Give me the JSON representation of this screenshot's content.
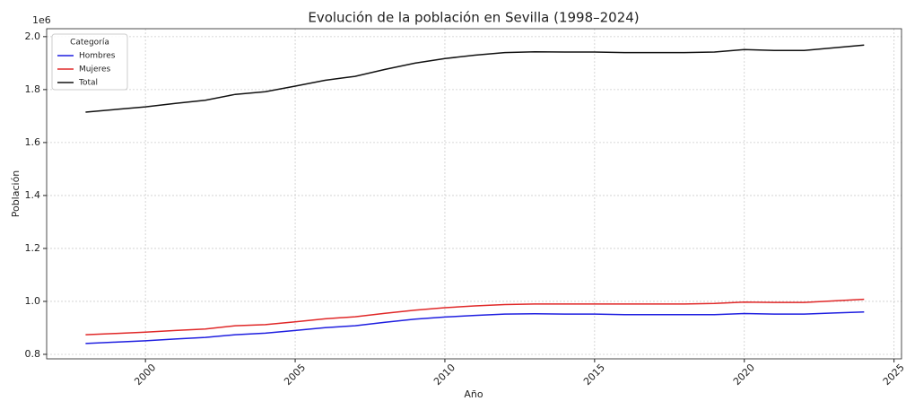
{
  "chart_data": {
    "type": "line",
    "title": "Evolución de la población en Sevilla (1998–2024)",
    "xlabel": "Año",
    "ylabel": "Población",
    "y_offset_label": "1e6",
    "x": [
      1998,
      1999,
      2000,
      2001,
      2002,
      2003,
      2004,
      2005,
      2006,
      2007,
      2008,
      2009,
      2010,
      2011,
      2012,
      2013,
      2014,
      2015,
      2016,
      2017,
      2018,
      2019,
      2020,
      2021,
      2022,
      2023,
      2024
    ],
    "series": [
      {
        "name": "Hombres",
        "color": "#1f1fe0",
        "values": [
          841000,
          846000,
          851000,
          858000,
          864000,
          874000,
          880000,
          890000,
          901000,
          908000,
          921000,
          933000,
          941000,
          947000,
          952000,
          953000,
          952000,
          952000,
          950000,
          950000,
          950000,
          950000,
          954000,
          952000,
          952000,
          956000,
          960000
        ]
      },
      {
        "name": "Mujeres",
        "color": "#e02828",
        "values": [
          874000,
          879000,
          884000,
          890000,
          896000,
          908000,
          912000,
          923000,
          934000,
          942000,
          955000,
          967000,
          976000,
          983000,
          988000,
          990000,
          990000,
          990000,
          990000,
          990000,
          990000,
          992000,
          997000,
          996000,
          996000,
          1002000,
          1008000
        ]
      },
      {
        "name": "Total",
        "color": "#111111",
        "values": [
          1715000,
          1725000,
          1735000,
          1748000,
          1760000,
          1782000,
          1792000,
          1813000,
          1835000,
          1850000,
          1876000,
          1900000,
          1917000,
          1930000,
          1940000,
          1943000,
          1942000,
          1942000,
          1940000,
          1940000,
          1940000,
          1942000,
          1951000,
          1948000,
          1948000,
          1958000,
          1968000
        ]
      }
    ],
    "legend_title": "Categoría",
    "legend": "upper left",
    "grid": true,
    "xlim": [
      1996.7,
      2025.25
    ],
    "xticks": [
      2000,
      2005,
      2010,
      2015,
      2020,
      2025
    ],
    "ylim": [
      783000,
      2030000
    ],
    "yticks": [
      {
        "value": 800000,
        "label": "0.8"
      },
      {
        "value": 1000000,
        "label": "1.0"
      },
      {
        "value": 1200000,
        "label": "1.2"
      },
      {
        "value": 1400000,
        "label": "1.4"
      },
      {
        "value": 1600000,
        "label": "1.6"
      },
      {
        "value": 1800000,
        "label": "1.8"
      },
      {
        "value": 2000000,
        "label": "2.0"
      }
    ]
  }
}
